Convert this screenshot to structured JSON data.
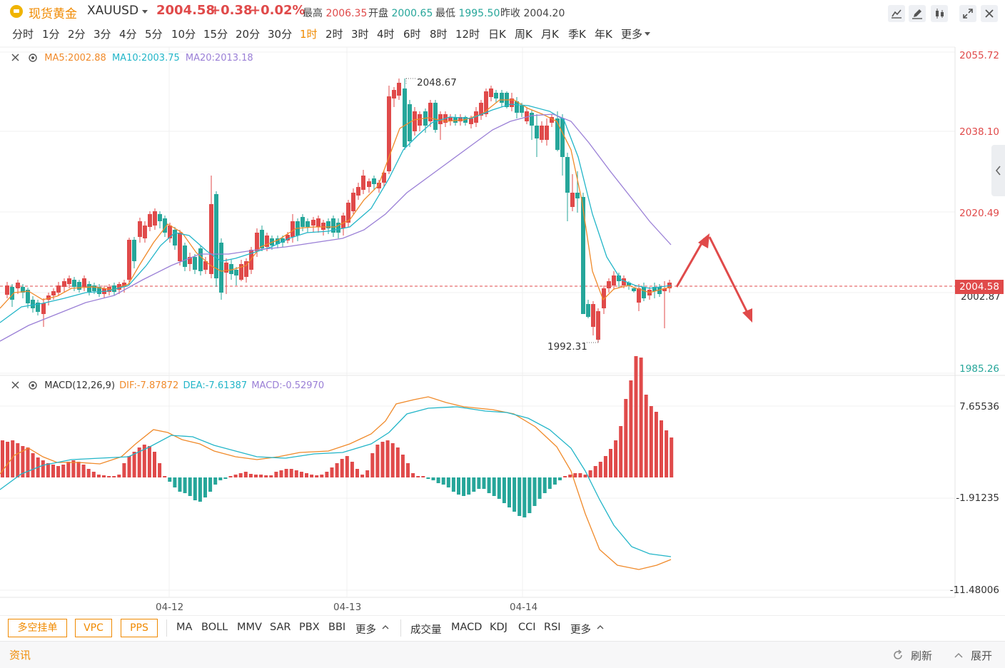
{
  "header": {
    "name": "现货黄金",
    "code": "XAUUSD",
    "price": "2004.58",
    "change": "+0.38",
    "change_pct": "+0.02%",
    "high_label": "最高",
    "high": "2006.35",
    "open_label": "开盘",
    "open": "2000.65",
    "low_label": "最低",
    "low": "1995.50",
    "prev_label": "昨收",
    "prev": "2004.20"
  },
  "periods": [
    "分时",
    "1分",
    "2分",
    "3分",
    "4分",
    "5分",
    "10分",
    "15分",
    "20分",
    "30分",
    "1时",
    "2时",
    "3时",
    "4时",
    "6时",
    "8时",
    "12时",
    "日K",
    "周K",
    "月K",
    "季K",
    "年K",
    "更多"
  ],
  "active_period": "1时",
  "main_legend": {
    "ma5": "MA5:2002.88",
    "ma10": "MA10:2003.75",
    "ma20": "MA20:2013.18"
  },
  "price_axis": [
    "2055.72",
    "2038.10",
    "2020.49",
    "2002.87",
    "1985.26"
  ],
  "current_price_tag": "2004.58",
  "annotations": {
    "high": "2048.67",
    "low": "1992.31"
  },
  "macd_legend": {
    "name": "MACD(12,26,9)",
    "dif": "DIF:-7.87872",
    "dea": "DEA:-7.61387",
    "macd": "MACD:-0.52970"
  },
  "macd_axis": [
    "7.65536",
    "-1.91235",
    "-11.48006"
  ],
  "dates": [
    "04-12",
    "04-13",
    "04-14"
  ],
  "buttons": [
    "多空挂单",
    "VPC",
    "PPS"
  ],
  "main_indicators": [
    "MA",
    "BOLL",
    "MMV",
    "SAR",
    "PBX",
    "BBI",
    "更多"
  ],
  "sub_indicators": [
    "成交量",
    "MACD",
    "KDJ",
    "CCI",
    "RSI",
    "更多"
  ],
  "news": {
    "label": "资讯",
    "refresh": "刷新",
    "expand": "展开"
  },
  "colors": {
    "up": "#e04a4a",
    "down": "#26a69a",
    "ma5": "#f08a2a",
    "ma10": "#22b5c8",
    "ma20": "#9a7fd6",
    "accent": "#f08a00"
  }
}
